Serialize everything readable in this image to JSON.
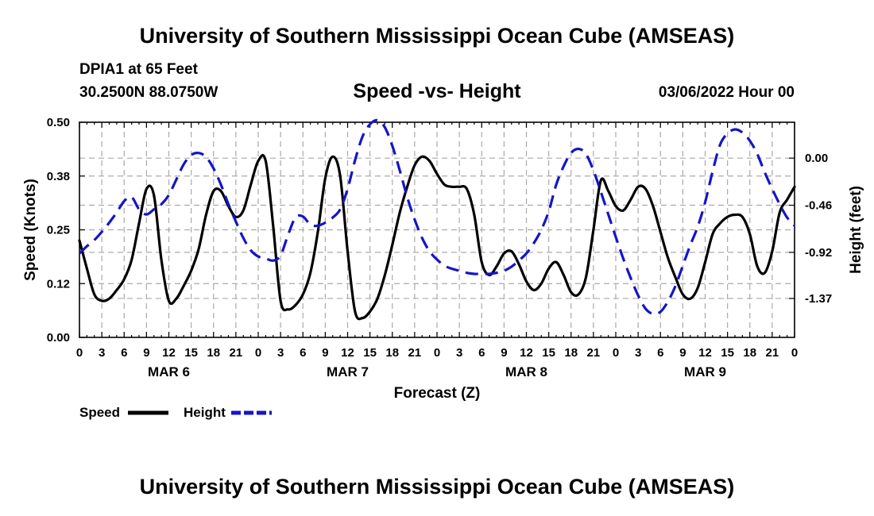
{
  "header": {
    "title": "University of Southern Mississippi Ocean Cube (AMSEAS)",
    "station": "DPIA1 at 65 Feet",
    "location": "30.2500N  88.0750W",
    "subtitle": "Speed -vs- Height",
    "datetime": "03/06/2022 Hour 00"
  },
  "footer": {
    "title": "University of Southern Mississippi Ocean Cube (AMSEAS)"
  },
  "chart_data": {
    "type": "line",
    "xlabel": "Forecast (Z)",
    "ylabel": "Speed (Knots)",
    "y2label": "Height (feet)",
    "xlim": [
      0,
      96
    ],
    "ylim": [
      0,
      0.5
    ],
    "y2lim": [
      -1.75,
      0.35
    ],
    "grid": true,
    "x_ticks": [
      0,
      3,
      6,
      9,
      12,
      15,
      18,
      21,
      24,
      27,
      30,
      33,
      36,
      39,
      42,
      45,
      48,
      51,
      54,
      57,
      60,
      63,
      66,
      69,
      72,
      75,
      78,
      81,
      84,
      87,
      90,
      93,
      96
    ],
    "x_tick_labels": [
      "0",
      "3",
      "6",
      "9",
      "12",
      "15",
      "18",
      "21",
      "0",
      "3",
      "6",
      "9",
      "12",
      "15",
      "18",
      "21",
      "0",
      "3",
      "6",
      "9",
      "12",
      "15",
      "18",
      "21",
      "0",
      "3",
      "6",
      "9",
      "12",
      "15",
      "18",
      "21",
      "0"
    ],
    "day_labels": [
      {
        "hour": 12,
        "label": "MAR 6"
      },
      {
        "hour": 36,
        "label": "MAR 7"
      },
      {
        "hour": 60,
        "label": "MAR 8"
      },
      {
        "hour": 84,
        "label": "MAR 9"
      }
    ],
    "y_ticks": [
      0.0,
      0.125,
      0.25,
      0.375,
      0.5
    ],
    "y_tick_labels": [
      "0.00",
      "0.12",
      "0.25",
      "0.38",
      "0.50"
    ],
    "y2_ticks": [
      0.0,
      -0.46,
      -0.92,
      -1.37
    ],
    "y2_tick_labels": [
      "0.00",
      "-0.46",
      "-0.92",
      "-1.37"
    ],
    "legend": [
      {
        "label": "Speed",
        "color": "#000000",
        "dash": "solid"
      },
      {
        "label": "Height",
        "color": "#1515c8",
        "dash": "dashed"
      }
    ],
    "series": [
      {
        "name": "Speed",
        "axis": "left",
        "color": "#000000",
        "x": [
          0,
          1,
          2,
          3,
          4,
          5,
          6,
          7,
          8,
          9,
          10,
          11,
          12,
          13,
          14,
          15,
          16,
          17,
          18,
          19,
          20,
          21,
          22,
          23,
          24,
          25,
          26,
          27,
          28,
          29,
          30,
          31,
          32,
          33,
          34,
          35,
          36,
          37,
          38,
          39,
          40,
          41,
          42,
          43,
          44,
          45,
          46,
          47,
          48,
          49,
          50,
          51,
          52,
          53,
          54,
          55,
          56,
          57,
          58,
          59,
          60,
          61,
          62,
          63,
          64,
          65,
          66,
          67,
          68,
          69,
          70,
          71,
          72,
          73,
          74,
          75,
          76,
          77,
          78,
          79,
          80,
          81,
          82,
          83,
          84,
          85,
          86,
          87,
          88,
          89,
          90,
          91,
          92,
          93,
          94,
          95,
          96
        ],
        "values": [
          0.225,
          0.16,
          0.1,
          0.085,
          0.09,
          0.11,
          0.135,
          0.18,
          0.265,
          0.345,
          0.33,
          0.18,
          0.085,
          0.09,
          0.12,
          0.155,
          0.205,
          0.285,
          0.34,
          0.34,
          0.305,
          0.28,
          0.295,
          0.355,
          0.41,
          0.41,
          0.26,
          0.085,
          0.065,
          0.075,
          0.1,
          0.15,
          0.245,
          0.37,
          0.42,
          0.375,
          0.2,
          0.06,
          0.045,
          0.06,
          0.09,
          0.145,
          0.215,
          0.29,
          0.35,
          0.4,
          0.42,
          0.41,
          0.38,
          0.355,
          0.35,
          0.35,
          0.345,
          0.285,
          0.175,
          0.145,
          0.165,
          0.195,
          0.2,
          0.17,
          0.13,
          0.11,
          0.125,
          0.16,
          0.175,
          0.145,
          0.105,
          0.1,
          0.14,
          0.25,
          0.365,
          0.34,
          0.305,
          0.295,
          0.32,
          0.35,
          0.345,
          0.305,
          0.245,
          0.185,
          0.14,
          0.1,
          0.09,
          0.115,
          0.175,
          0.24,
          0.265,
          0.28,
          0.285,
          0.28,
          0.24,
          0.165,
          0.15,
          0.2,
          0.29,
          0.32,
          0.35
        ]
      },
      {
        "name": "Height",
        "axis": "right",
        "color": "#1515c8",
        "x": [
          0,
          1,
          2,
          3,
          4,
          5,
          6,
          7,
          8,
          9,
          10,
          11,
          12,
          13,
          14,
          15,
          16,
          17,
          18,
          19,
          20,
          21,
          22,
          23,
          24,
          25,
          26,
          27,
          28,
          29,
          30,
          31,
          32,
          33,
          34,
          35,
          36,
          37,
          38,
          39,
          40,
          41,
          42,
          43,
          44,
          45,
          46,
          47,
          48,
          49,
          50,
          51,
          52,
          53,
          54,
          55,
          56,
          57,
          58,
          59,
          60,
          61,
          62,
          63,
          64,
          65,
          66,
          67,
          68,
          69,
          70,
          71,
          72,
          73,
          74,
          75,
          76,
          77,
          78,
          79,
          80,
          81,
          82,
          83,
          84,
          85,
          86,
          87,
          88,
          89,
          90,
          91,
          92,
          93,
          94,
          95,
          96
        ],
        "values": [
          -0.93,
          -0.86,
          -0.8,
          -0.72,
          -0.63,
          -0.53,
          -0.42,
          -0.38,
          -0.5,
          -0.55,
          -0.5,
          -0.45,
          -0.36,
          -0.21,
          -0.06,
          0.03,
          0.05,
          0.01,
          -0.1,
          -0.26,
          -0.45,
          -0.62,
          -0.78,
          -0.9,
          -0.96,
          -0.98,
          -1.0,
          -0.95,
          -0.75,
          -0.58,
          -0.57,
          -0.65,
          -0.66,
          -0.63,
          -0.58,
          -0.5,
          -0.3,
          -0.02,
          0.21,
          0.33,
          0.37,
          0.3,
          0.12,
          -0.12,
          -0.38,
          -0.6,
          -0.78,
          -0.91,
          -0.99,
          -1.05,
          -1.08,
          -1.1,
          -1.12,
          -1.13,
          -1.13,
          -1.13,
          -1.12,
          -1.1,
          -1.06,
          -1.0,
          -0.93,
          -0.83,
          -0.7,
          -0.52,
          -0.26,
          -0.08,
          0.05,
          0.09,
          0.04,
          -0.12,
          -0.33,
          -0.55,
          -0.77,
          -0.98,
          -1.17,
          -1.34,
          -1.47,
          -1.52,
          -1.5,
          -1.4,
          -1.25,
          -1.05,
          -0.85,
          -0.67,
          -0.43,
          -0.13,
          0.13,
          0.24,
          0.28,
          0.25,
          0.17,
          0.04,
          -0.14,
          -0.3,
          -0.45,
          -0.58,
          -0.66
        ]
      }
    ]
  }
}
